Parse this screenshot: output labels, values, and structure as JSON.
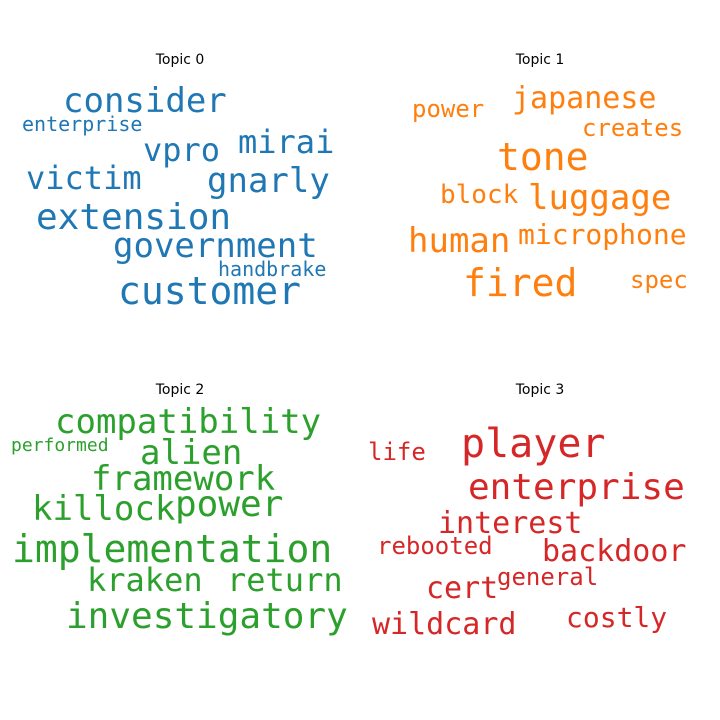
{
  "chart_data": [
    {
      "type": "wordcloud",
      "title": "Topic 0",
      "color": "#1f77b4",
      "words": [
        {
          "text": "consider"
        },
        {
          "text": "enterprise"
        },
        {
          "text": "vpro"
        },
        {
          "text": "mirai"
        },
        {
          "text": "victim"
        },
        {
          "text": "gnarly"
        },
        {
          "text": "extension"
        },
        {
          "text": "government"
        },
        {
          "text": "handbrake"
        },
        {
          "text": "customer"
        }
      ]
    },
    {
      "type": "wordcloud",
      "title": "Topic 1",
      "color": "#ff7f0e",
      "words": [
        {
          "text": "japanese"
        },
        {
          "text": "power"
        },
        {
          "text": "creates"
        },
        {
          "text": "tone"
        },
        {
          "text": "block"
        },
        {
          "text": "luggage"
        },
        {
          "text": "human"
        },
        {
          "text": "microphone"
        },
        {
          "text": "fired"
        },
        {
          "text": "spec"
        }
      ]
    },
    {
      "type": "wordcloud",
      "title": "Topic 2",
      "color": "#2ca02c",
      "words": [
        {
          "text": "compatibility"
        },
        {
          "text": "performed"
        },
        {
          "text": "alien"
        },
        {
          "text": "framework"
        },
        {
          "text": "killock"
        },
        {
          "text": "power"
        },
        {
          "text": "implementation"
        },
        {
          "text": "kraken"
        },
        {
          "text": "return"
        },
        {
          "text": "investigatory"
        }
      ]
    },
    {
      "type": "wordcloud",
      "title": "Topic 3",
      "color": "#d62728",
      "words": [
        {
          "text": "player"
        },
        {
          "text": "life"
        },
        {
          "text": "enterprise"
        },
        {
          "text": "interest"
        },
        {
          "text": "rebooted"
        },
        {
          "text": "backdoor"
        },
        {
          "text": "general"
        },
        {
          "text": "cert"
        },
        {
          "text": "wildcard"
        },
        {
          "text": "costly"
        }
      ]
    }
  ]
}
